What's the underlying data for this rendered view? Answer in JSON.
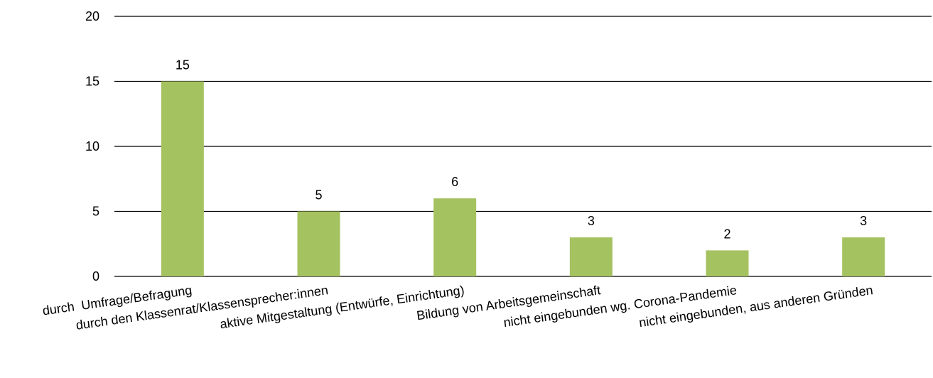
{
  "chart_data": {
    "type": "bar",
    "categories": [
      "durch  Umfrage/Befragung",
      "durch den Klassenrat/Klassensprecher:innen",
      "aktive Mitgestaltung (Entwürfe, Einrichtung)",
      "Bildung von Arbeitsgemeinschaft",
      "nicht eingebunden wg. Corona-Pandemie",
      "nicht eingebunden, aus anderen Gründen"
    ],
    "values": [
      15,
      5,
      6,
      3,
      2,
      3
    ],
    "color": "#a5c261",
    "ylim": [
      0,
      20
    ],
    "yticks": [
      0,
      5,
      10,
      15,
      20
    ],
    "grid": true
  }
}
